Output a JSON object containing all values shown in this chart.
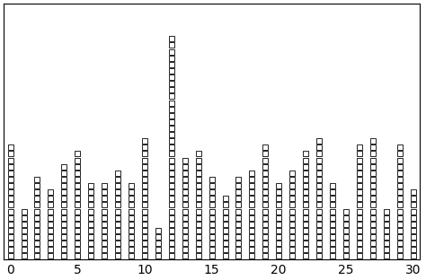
{
  "counts": {
    "0": 18,
    "1": 8,
    "2": 13,
    "3": 11,
    "4": 15,
    "5": 17,
    "6": 12,
    "7": 12,
    "8": 14,
    "9": 12,
    "10": 19,
    "11": 5,
    "12": 35,
    "13": 16,
    "14": 17,
    "15": 13,
    "16": 10,
    "17": 13,
    "18": 14,
    "19": 18,
    "20": 12,
    "21": 14,
    "22": 17,
    "23": 19,
    "24": 12,
    "25": 8,
    "26": 18,
    "27": 19,
    "28": 8,
    "29": 18,
    "30": 11
  },
  "xlim": [
    -0.5,
    30.5
  ],
  "ylim": [
    0,
    40
  ],
  "xticks": [
    0,
    5,
    10,
    15,
    20,
    25,
    30
  ],
  "marker": "s",
  "marker_size": 4.5,
  "marker_facecolor": "white",
  "marker_edgecolor": "black",
  "marker_edgewidth": 0.6,
  "bg_color": "white",
  "fig_width": 4.74,
  "fig_height": 3.12,
  "dpi": 100
}
